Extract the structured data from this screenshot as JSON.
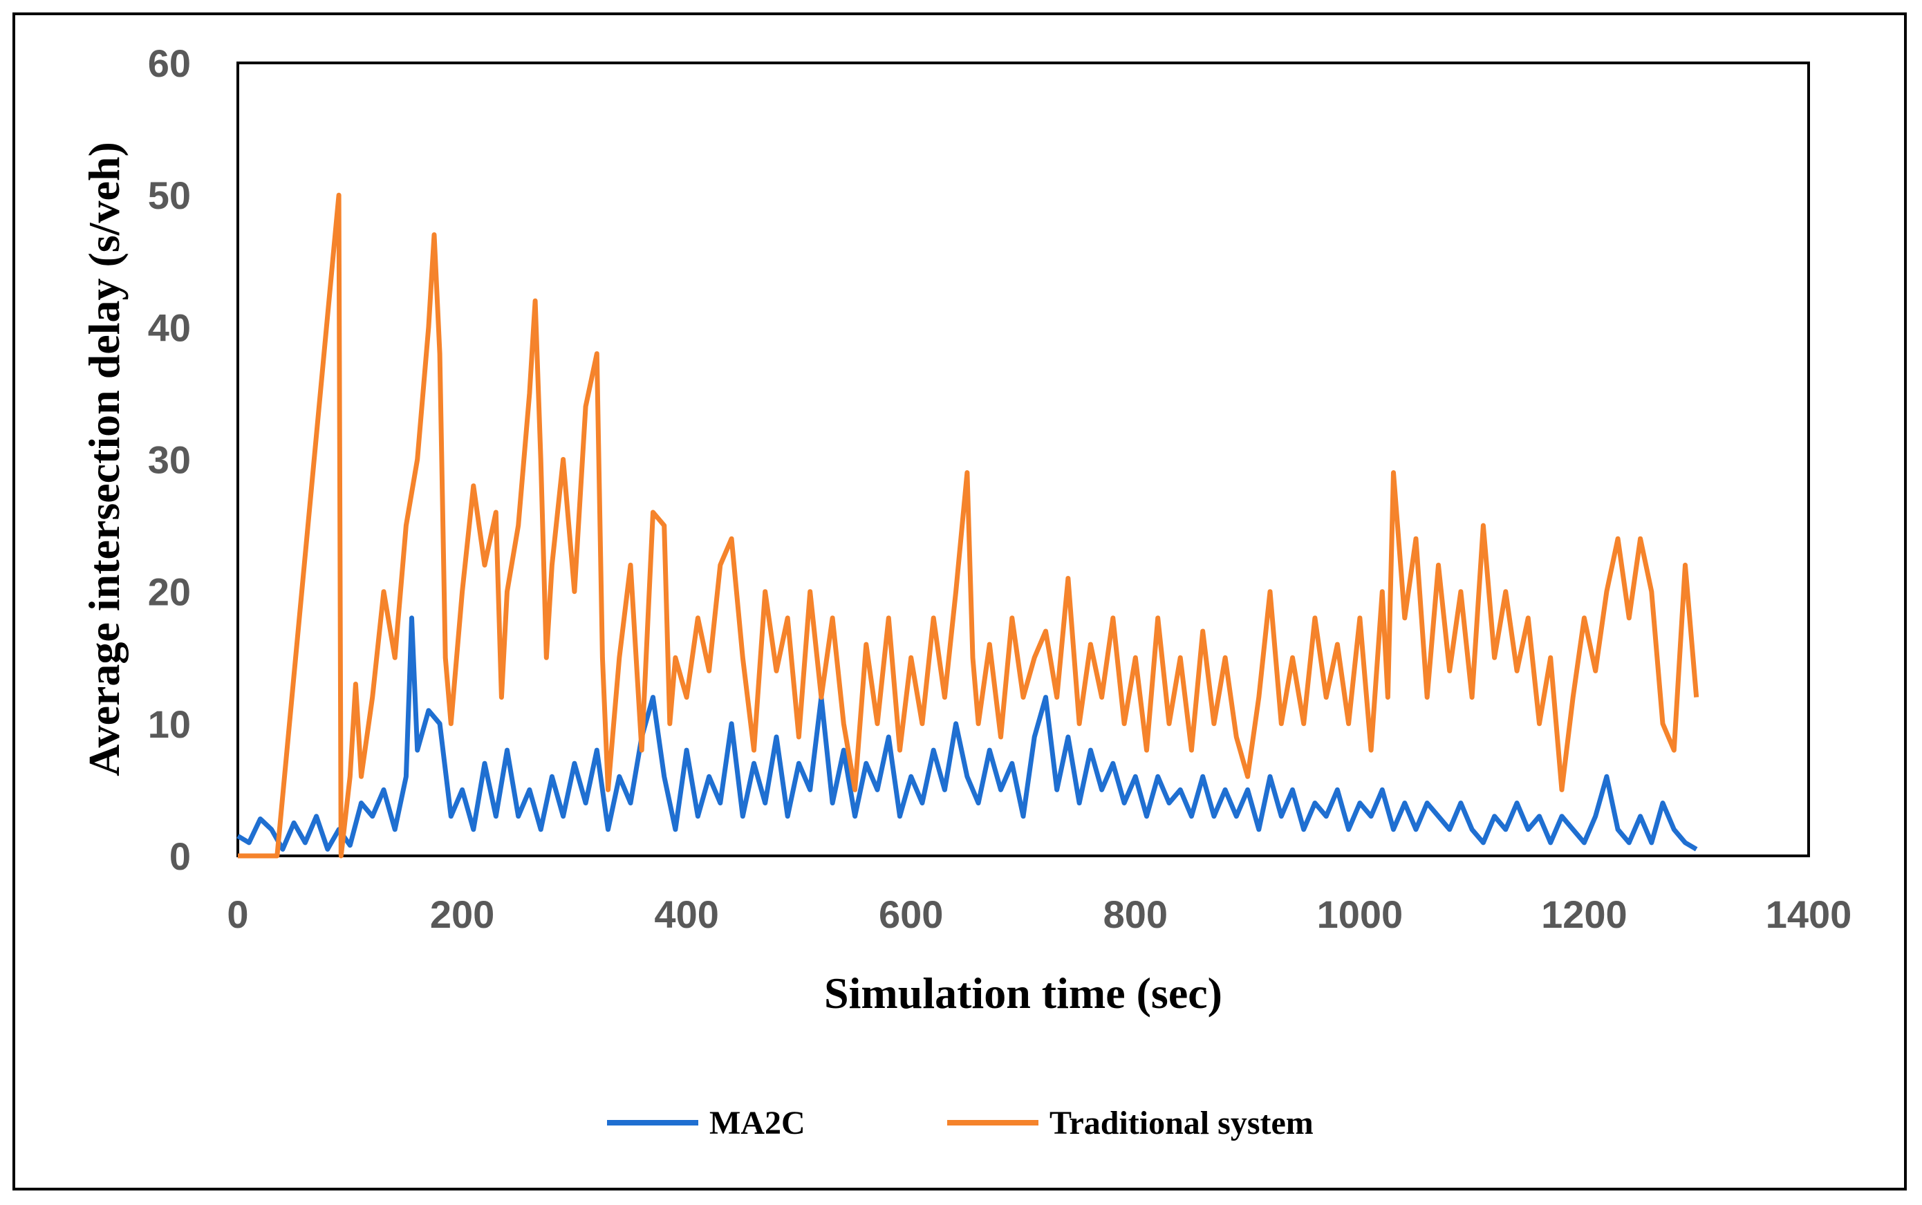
{
  "chart_data": {
    "type": "line",
    "xlabel": "Simulation time (sec)",
    "ylabel": "Average intersection delay (s/veh)",
    "xlim": [
      0,
      1400
    ],
    "ylim": [
      0,
      60
    ],
    "xticks": [
      "0",
      "200",
      "400",
      "600",
      "800",
      "1000",
      "1200",
      "1400"
    ],
    "yticks": [
      "0",
      "10",
      "20",
      "30",
      "40",
      "50",
      "60"
    ],
    "legend_position": "bottom",
    "grid": false,
    "series": [
      {
        "name": "MA2C",
        "color": "#1f6fd1",
        "points": [
          [
            0,
            1.5
          ],
          [
            10,
            1
          ],
          [
            20,
            2.8
          ],
          [
            30,
            2
          ],
          [
            40,
            0.5
          ],
          [
            50,
            2.5
          ],
          [
            60,
            1
          ],
          [
            70,
            3
          ],
          [
            80,
            0.5
          ],
          [
            90,
            2
          ],
          [
            100,
            0.8
          ],
          [
            110,
            4
          ],
          [
            120,
            3
          ],
          [
            130,
            5
          ],
          [
            140,
            2
          ],
          [
            150,
            6
          ],
          [
            155,
            18
          ],
          [
            160,
            8
          ],
          [
            170,
            11
          ],
          [
            180,
            10
          ],
          [
            190,
            3
          ],
          [
            200,
            5
          ],
          [
            210,
            2
          ],
          [
            220,
            7
          ],
          [
            230,
            3
          ],
          [
            240,
            8
          ],
          [
            250,
            3
          ],
          [
            260,
            5
          ],
          [
            270,
            2
          ],
          [
            280,
            6
          ],
          [
            290,
            3
          ],
          [
            300,
            7
          ],
          [
            310,
            4
          ],
          [
            320,
            8
          ],
          [
            330,
            2
          ],
          [
            340,
            6
          ],
          [
            350,
            4
          ],
          [
            360,
            9
          ],
          [
            370,
            12
          ],
          [
            380,
            6
          ],
          [
            390,
            2
          ],
          [
            400,
            8
          ],
          [
            410,
            3
          ],
          [
            420,
            6
          ],
          [
            430,
            4
          ],
          [
            440,
            10
          ],
          [
            450,
            3
          ],
          [
            460,
            7
          ],
          [
            470,
            4
          ],
          [
            480,
            9
          ],
          [
            490,
            3
          ],
          [
            500,
            7
          ],
          [
            510,
            5
          ],
          [
            520,
            12
          ],
          [
            530,
            4
          ],
          [
            540,
            8
          ],
          [
            550,
            3
          ],
          [
            560,
            7
          ],
          [
            570,
            5
          ],
          [
            580,
            9
          ],
          [
            590,
            3
          ],
          [
            600,
            6
          ],
          [
            610,
            4
          ],
          [
            620,
            8
          ],
          [
            630,
            5
          ],
          [
            640,
            10
          ],
          [
            650,
            6
          ],
          [
            660,
            4
          ],
          [
            670,
            8
          ],
          [
            680,
            5
          ],
          [
            690,
            7
          ],
          [
            700,
            3
          ],
          [
            710,
            9
          ],
          [
            720,
            12
          ],
          [
            730,
            5
          ],
          [
            740,
            9
          ],
          [
            750,
            4
          ],
          [
            760,
            8
          ],
          [
            770,
            5
          ],
          [
            780,
            7
          ],
          [
            790,
            4
          ],
          [
            800,
            6
          ],
          [
            810,
            3
          ],
          [
            820,
            6
          ],
          [
            830,
            4
          ],
          [
            840,
            5
          ],
          [
            850,
            3
          ],
          [
            860,
            6
          ],
          [
            870,
            3
          ],
          [
            880,
            5
          ],
          [
            890,
            3
          ],
          [
            900,
            5
          ],
          [
            910,
            2
          ],
          [
            920,
            6
          ],
          [
            930,
            3
          ],
          [
            940,
            5
          ],
          [
            950,
            2
          ],
          [
            960,
            4
          ],
          [
            970,
            3
          ],
          [
            980,
            5
          ],
          [
            990,
            2
          ],
          [
            1000,
            4
          ],
          [
            1010,
            3
          ],
          [
            1020,
            5
          ],
          [
            1030,
            2
          ],
          [
            1040,
            4
          ],
          [
            1050,
            2
          ],
          [
            1060,
            4
          ],
          [
            1070,
            3
          ],
          [
            1080,
            2
          ],
          [
            1090,
            4
          ],
          [
            1100,
            2
          ],
          [
            1110,
            1
          ],
          [
            1120,
            3
          ],
          [
            1130,
            2
          ],
          [
            1140,
            4
          ],
          [
            1150,
            2
          ],
          [
            1160,
            3
          ],
          [
            1170,
            1
          ],
          [
            1180,
            3
          ],
          [
            1190,
            2
          ],
          [
            1200,
            1
          ],
          [
            1210,
            3
          ],
          [
            1220,
            6
          ],
          [
            1230,
            2
          ],
          [
            1240,
            1
          ],
          [
            1250,
            3
          ],
          [
            1260,
            1
          ],
          [
            1270,
            4
          ],
          [
            1280,
            2
          ],
          [
            1290,
            1
          ],
          [
            1300,
            0.5
          ]
        ]
      },
      {
        "name": "Traditional system",
        "color": "#f5832b",
        "points": [
          [
            0,
            0
          ],
          [
            30,
            0
          ],
          [
            35,
            0
          ],
          [
            90,
            50
          ],
          [
            92,
            0
          ],
          [
            100,
            6
          ],
          [
            105,
            13
          ],
          [
            110,
            6
          ],
          [
            120,
            12
          ],
          [
            130,
            20
          ],
          [
            140,
            15
          ],
          [
            150,
            25
          ],
          [
            160,
            30
          ],
          [
            170,
            40
          ],
          [
            175,
            47
          ],
          [
            180,
            38
          ],
          [
            185,
            15
          ],
          [
            190,
            10
          ],
          [
            200,
            20
          ],
          [
            210,
            28
          ],
          [
            220,
            22
          ],
          [
            230,
            26
          ],
          [
            235,
            12
          ],
          [
            240,
            20
          ],
          [
            250,
            25
          ],
          [
            260,
            35
          ],
          [
            265,
            42
          ],
          [
            270,
            30
          ],
          [
            275,
            15
          ],
          [
            280,
            22
          ],
          [
            290,
            30
          ],
          [
            300,
            20
          ],
          [
            310,
            34
          ],
          [
            320,
            38
          ],
          [
            325,
            15
          ],
          [
            330,
            5
          ],
          [
            340,
            15
          ],
          [
            350,
            22
          ],
          [
            360,
            8
          ],
          [
            370,
            26
          ],
          [
            380,
            25
          ],
          [
            385,
            10
          ],
          [
            390,
            15
          ],
          [
            400,
            12
          ],
          [
            410,
            18
          ],
          [
            420,
            14
          ],
          [
            430,
            22
          ],
          [
            440,
            24
          ],
          [
            450,
            15
          ],
          [
            460,
            8
          ],
          [
            470,
            20
          ],
          [
            480,
            14
          ],
          [
            490,
            18
          ],
          [
            500,
            9
          ],
          [
            510,
            20
          ],
          [
            520,
            12
          ],
          [
            530,
            18
          ],
          [
            540,
            10
          ],
          [
            550,
            5
          ],
          [
            560,
            16
          ],
          [
            570,
            10
          ],
          [
            580,
            18
          ],
          [
            590,
            8
          ],
          [
            600,
            15
          ],
          [
            610,
            10
          ],
          [
            620,
            18
          ],
          [
            630,
            12
          ],
          [
            640,
            20
          ],
          [
            650,
            29
          ],
          [
            655,
            15
          ],
          [
            660,
            10
          ],
          [
            670,
            16
          ],
          [
            680,
            9
          ],
          [
            690,
            18
          ],
          [
            700,
            12
          ],
          [
            710,
            15
          ],
          [
            720,
            17
          ],
          [
            730,
            12
          ],
          [
            740,
            21
          ],
          [
            750,
            10
          ],
          [
            760,
            16
          ],
          [
            770,
            12
          ],
          [
            780,
            18
          ],
          [
            790,
            10
          ],
          [
            800,
            15
          ],
          [
            810,
            8
          ],
          [
            820,
            18
          ],
          [
            830,
            10
          ],
          [
            840,
            15
          ],
          [
            850,
            8
          ],
          [
            860,
            17
          ],
          [
            870,
            10
          ],
          [
            880,
            15
          ],
          [
            890,
            9
          ],
          [
            900,
            6
          ],
          [
            910,
            12
          ],
          [
            920,
            20
          ],
          [
            930,
            10
          ],
          [
            940,
            15
          ],
          [
            950,
            10
          ],
          [
            960,
            18
          ],
          [
            970,
            12
          ],
          [
            980,
            16
          ],
          [
            990,
            10
          ],
          [
            1000,
            18
          ],
          [
            1010,
            8
          ],
          [
            1020,
            20
          ],
          [
            1025,
            12
          ],
          [
            1030,
            29
          ],
          [
            1040,
            18
          ],
          [
            1050,
            24
          ],
          [
            1060,
            12
          ],
          [
            1070,
            22
          ],
          [
            1080,
            14
          ],
          [
            1090,
            20
          ],
          [
            1100,
            12
          ],
          [
            1110,
            25
          ],
          [
            1120,
            15
          ],
          [
            1130,
            20
          ],
          [
            1140,
            14
          ],
          [
            1150,
            18
          ],
          [
            1160,
            10
          ],
          [
            1170,
            15
          ],
          [
            1180,
            5
          ],
          [
            1190,
            12
          ],
          [
            1200,
            18
          ],
          [
            1210,
            14
          ],
          [
            1220,
            20
          ],
          [
            1230,
            24
          ],
          [
            1240,
            18
          ],
          [
            1250,
            24
          ],
          [
            1260,
            20
          ],
          [
            1270,
            10
          ],
          [
            1280,
            8
          ],
          [
            1290,
            22
          ],
          [
            1300,
            12
          ]
        ]
      }
    ]
  }
}
